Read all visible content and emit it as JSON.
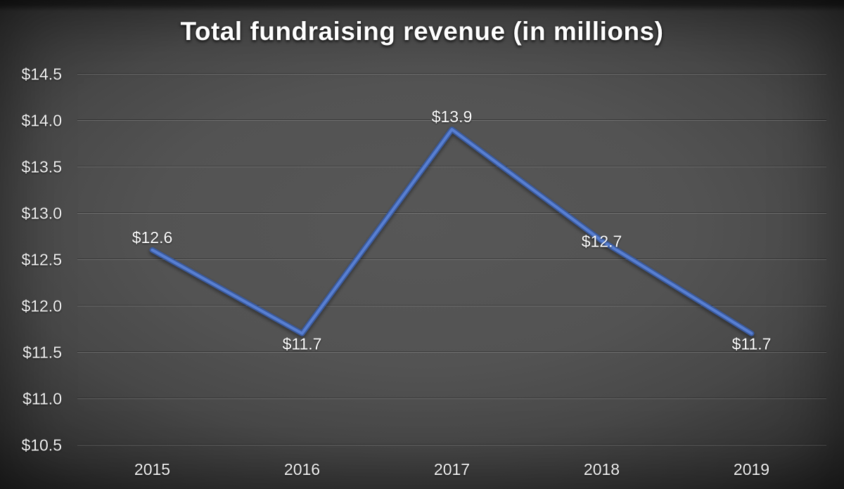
{
  "chart_data": {
    "type": "line",
    "title": "Total fundraising revenue (in millions)",
    "categories": [
      "2015",
      "2016",
      "2017",
      "2018",
      "2019"
    ],
    "values": [
      12.6,
      11.7,
      13.9,
      12.7,
      11.7
    ],
    "data_labels": [
      "$12.6",
      "$11.7",
      "$13.9",
      "$12.7",
      "$11.7"
    ],
    "data_label_positions": [
      "above",
      "below",
      "above",
      "center",
      "below"
    ],
    "xlabel": "",
    "ylabel": "",
    "legend": "none",
    "grid": true,
    "y_axis": {
      "min": 10.5,
      "max": 14.5,
      "step": 0.5,
      "ticks": [
        {
          "value": 10.5,
          "label": "$10.5"
        },
        {
          "value": 11.0,
          "label": "$11.0"
        },
        {
          "value": 11.5,
          "label": "$11.5"
        },
        {
          "value": 12.0,
          "label": "$12.0"
        },
        {
          "value": 12.5,
          "label": "$12.5"
        },
        {
          "value": 13.0,
          "label": "$13.0"
        },
        {
          "value": 13.5,
          "label": "$13.5"
        },
        {
          "value": 14.0,
          "label": "$14.0"
        },
        {
          "value": 14.5,
          "label": "$14.5"
        }
      ]
    },
    "colors": {
      "line_color": "#4472C4",
      "line_edge_color": "#3a5a9d",
      "line_highlight_color": "#587fd2",
      "text_color": "#efefef",
      "background_center": "#545454",
      "background_edge": "#1e1e1e"
    }
  }
}
